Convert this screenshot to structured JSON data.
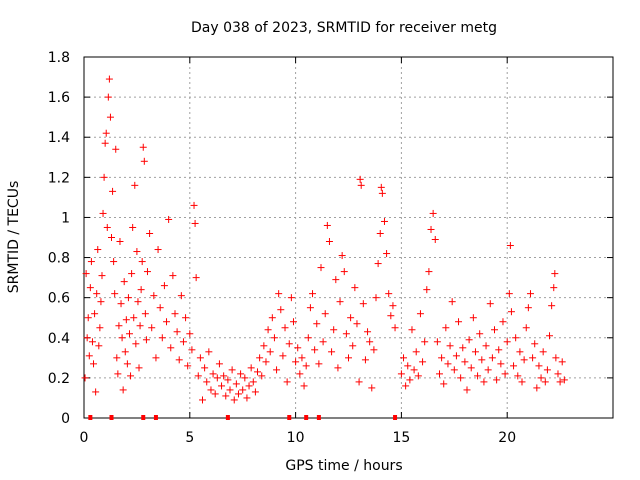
{
  "chart_data": {
    "type": "scatter",
    "title": "Day 038 of 2023, SRMTID for receiver metg",
    "xlabel": "GPS time / hours",
    "ylabel": "SRMTID / TECUs",
    "xlim": [
      0,
      25
    ],
    "ylim": [
      0,
      1.8
    ],
    "xticks": [
      "0",
      "5",
      "10",
      "15",
      "20"
    ],
    "xtick_values": [
      0,
      5,
      10,
      15,
      20
    ],
    "yticks": [
      "0",
      "0.2",
      "0.4",
      "0.6",
      "0.8",
      "1",
      "1.2",
      "1.4",
      "1.6",
      "1.8"
    ],
    "ytick_values": [
      0,
      0.2,
      0.4,
      0.6,
      0.8,
      1.0,
      1.2,
      1.4,
      1.6,
      1.8
    ],
    "grid": true,
    "marker": "+",
    "color": "#ff0000",
    "series": [
      {
        "name": "SRMTID",
        "points": [
          [
            0.05,
            0.2
          ],
          [
            0.1,
            0.72
          ],
          [
            0.15,
            0.4
          ],
          [
            0.2,
            0.5
          ],
          [
            0.25,
            0.31
          ],
          [
            0.3,
            0.65
          ],
          [
            0.35,
            0.78
          ],
          [
            0.4,
            0.38
          ],
          [
            0.45,
            0.27
          ],
          [
            0.5,
            0.52
          ],
          [
            0.55,
            0.13
          ],
          [
            0.6,
            0.62
          ],
          [
            0.65,
            0.84
          ],
          [
            0.7,
            0.36
          ],
          [
            0.75,
            0.45
          ],
          [
            0.8,
            0.58
          ],
          [
            0.85,
            0.71
          ],
          [
            0.9,
            1.02
          ],
          [
            0.95,
            1.2
          ],
          [
            1.0,
            1.37
          ],
          [
            1.05,
            1.42
          ],
          [
            1.1,
            0.95
          ],
          [
            1.15,
            1.6
          ],
          [
            1.2,
            1.69
          ],
          [
            1.25,
            1.5
          ],
          [
            1.3,
            0.9
          ],
          [
            1.35,
            1.13
          ],
          [
            1.4,
            0.78
          ],
          [
            1.45,
            0.62
          ],
          [
            1.5,
            1.34
          ],
          [
            1.55,
            0.3
          ],
          [
            1.6,
            0.22
          ],
          [
            1.65,
            0.46
          ],
          [
            1.7,
            0.88
          ],
          [
            1.75,
            0.57
          ],
          [
            1.8,
            0.4
          ],
          [
            1.85,
            0.14
          ],
          [
            1.9,
            0.68
          ],
          [
            1.95,
            0.33
          ],
          [
            2.0,
            0.49
          ],
          [
            2.05,
            0.27
          ],
          [
            2.1,
            0.6
          ],
          [
            2.15,
            0.42
          ],
          [
            2.2,
            0.21
          ],
          [
            2.25,
            0.72
          ],
          [
            2.3,
            0.95
          ],
          [
            2.35,
            0.5
          ],
          [
            2.4,
            1.16
          ],
          [
            2.45,
            0.37
          ],
          [
            2.5,
            0.83
          ],
          [
            2.55,
            0.58
          ],
          [
            2.6,
            0.25
          ],
          [
            2.65,
            0.46
          ],
          [
            2.7,
            0.64
          ],
          [
            2.75,
            0.78
          ],
          [
            2.8,
            1.35
          ],
          [
            2.85,
            1.28
          ],
          [
            2.9,
            0.52
          ],
          [
            2.95,
            0.39
          ],
          [
            3.0,
            0.73
          ],
          [
            3.1,
            0.92
          ],
          [
            3.2,
            0.45
          ],
          [
            3.3,
            0.61
          ],
          [
            3.4,
            0.3
          ],
          [
            3.5,
            0.84
          ],
          [
            3.6,
            0.55
          ],
          [
            3.7,
            0.4
          ],
          [
            3.8,
            0.66
          ],
          [
            3.9,
            0.48
          ],
          [
            4.0,
            0.99
          ],
          [
            4.1,
            0.35
          ],
          [
            4.2,
            0.71
          ],
          [
            4.3,
            0.52
          ],
          [
            4.4,
            0.43
          ],
          [
            4.5,
            0.29
          ],
          [
            4.6,
            0.61
          ],
          [
            4.7,
            0.38
          ],
          [
            4.8,
            0.5
          ],
          [
            4.9,
            0.26
          ],
          [
            5.0,
            0.42
          ],
          [
            5.1,
            0.34
          ],
          [
            5.2,
            1.06
          ],
          [
            5.25,
            0.97
          ],
          [
            5.3,
            0.7
          ],
          [
            5.4,
            0.21
          ],
          [
            5.5,
            0.3
          ],
          [
            5.6,
            0.09
          ],
          [
            5.7,
            0.25
          ],
          [
            5.8,
            0.18
          ],
          [
            5.9,
            0.33
          ],
          [
            6.0,
            0.14
          ],
          [
            6.1,
            0.22
          ],
          [
            6.2,
            0.12
          ],
          [
            6.3,
            0.2
          ],
          [
            6.4,
            0.27
          ],
          [
            6.5,
            0.16
          ],
          [
            6.6,
            0.21
          ],
          [
            6.7,
            0.11
          ],
          [
            6.8,
            0.19
          ],
          [
            6.9,
            0.14
          ],
          [
            7.0,
            0.24
          ],
          [
            7.1,
            0.09
          ],
          [
            7.2,
            0.17
          ],
          [
            7.3,
            0.12
          ],
          [
            7.4,
            0.22
          ],
          [
            7.5,
            0.14
          ],
          [
            7.6,
            0.2
          ],
          [
            7.7,
            0.1
          ],
          [
            7.8,
            0.16
          ],
          [
            7.9,
            0.25
          ],
          [
            8.0,
            0.18
          ],
          [
            8.1,
            0.13
          ],
          [
            8.2,
            0.23
          ],
          [
            8.3,
            0.3
          ],
          [
            8.4,
            0.21
          ],
          [
            8.5,
            0.36
          ],
          [
            8.6,
            0.28
          ],
          [
            8.7,
            0.44
          ],
          [
            8.8,
            0.33
          ],
          [
            8.9,
            0.5
          ],
          [
            9.0,
            0.4
          ],
          [
            9.1,
            0.24
          ],
          [
            9.2,
            0.62
          ],
          [
            9.3,
            0.54
          ],
          [
            9.4,
            0.31
          ],
          [
            9.5,
            0.45
          ],
          [
            9.6,
            0.18
          ],
          [
            9.7,
            0.37
          ],
          [
            9.8,
            0.6
          ],
          [
            9.9,
            0.48
          ],
          [
            10.0,
            0.28
          ],
          [
            10.1,
            0.35
          ],
          [
            10.2,
            0.22
          ],
          [
            10.3,
            0.3
          ],
          [
            10.4,
            0.16
          ],
          [
            10.5,
            0.26
          ],
          [
            10.6,
            0.4
          ],
          [
            10.7,
            0.55
          ],
          [
            10.8,
            0.62
          ],
          [
            10.9,
            0.34
          ],
          [
            11.0,
            0.47
          ],
          [
            11.1,
            0.27
          ],
          [
            11.2,
            0.75
          ],
          [
            11.3,
            0.38
          ],
          [
            11.4,
            0.52
          ],
          [
            11.5,
            0.96
          ],
          [
            11.6,
            0.88
          ],
          [
            11.7,
            0.33
          ],
          [
            11.8,
            0.44
          ],
          [
            11.9,
            0.69
          ],
          [
            12.0,
            0.25
          ],
          [
            12.1,
            0.58
          ],
          [
            12.2,
            0.81
          ],
          [
            12.3,
            0.73
          ],
          [
            12.4,
            0.42
          ],
          [
            12.5,
            0.3
          ],
          [
            12.6,
            0.5
          ],
          [
            12.7,
            0.36
          ],
          [
            12.8,
            0.65
          ],
          [
            12.9,
            0.47
          ],
          [
            13.0,
            0.18
          ],
          [
            13.05,
            1.19
          ],
          [
            13.1,
            1.16
          ],
          [
            13.2,
            0.57
          ],
          [
            13.3,
            0.29
          ],
          [
            13.4,
            0.43
          ],
          [
            13.5,
            0.38
          ],
          [
            13.6,
            0.15
          ],
          [
            13.7,
            0.34
          ],
          [
            13.8,
            0.6
          ],
          [
            13.9,
            0.77
          ],
          [
            14.0,
            0.92
          ],
          [
            14.05,
            1.15
          ],
          [
            14.1,
            1.12
          ],
          [
            14.2,
            0.98
          ],
          [
            14.3,
            0.82
          ],
          [
            14.4,
            0.62
          ],
          [
            14.5,
            0.51
          ],
          [
            14.6,
            0.56
          ],
          [
            14.7,
            0.45
          ],
          [
            15.0,
            0.22
          ],
          [
            15.1,
            0.3
          ],
          [
            15.2,
            0.16
          ],
          [
            15.3,
            0.26
          ],
          [
            15.4,
            0.19
          ],
          [
            15.5,
            0.44
          ],
          [
            15.6,
            0.24
          ],
          [
            15.7,
            0.33
          ],
          [
            15.8,
            0.21
          ],
          [
            15.9,
            0.52
          ],
          [
            16.0,
            0.28
          ],
          [
            16.1,
            0.38
          ],
          [
            16.2,
            0.64
          ],
          [
            16.3,
            0.73
          ],
          [
            16.4,
            0.94
          ],
          [
            16.5,
            1.02
          ],
          [
            16.6,
            0.89
          ],
          [
            16.7,
            0.38
          ],
          [
            16.8,
            0.22
          ],
          [
            16.9,
            0.3
          ],
          [
            17.0,
            0.17
          ],
          [
            17.1,
            0.45
          ],
          [
            17.2,
            0.27
          ],
          [
            17.3,
            0.36
          ],
          [
            17.4,
            0.58
          ],
          [
            17.5,
            0.24
          ],
          [
            17.6,
            0.31
          ],
          [
            17.7,
            0.48
          ],
          [
            17.8,
            0.2
          ],
          [
            17.9,
            0.35
          ],
          [
            18.0,
            0.28
          ],
          [
            18.1,
            0.14
          ],
          [
            18.2,
            0.39
          ],
          [
            18.3,
            0.25
          ],
          [
            18.4,
            0.5
          ],
          [
            18.5,
            0.33
          ],
          [
            18.6,
            0.21
          ],
          [
            18.7,
            0.42
          ],
          [
            18.8,
            0.29
          ],
          [
            18.9,
            0.18
          ],
          [
            19.0,
            0.36
          ],
          [
            19.1,
            0.24
          ],
          [
            19.2,
            0.57
          ],
          [
            19.3,
            0.3
          ],
          [
            19.4,
            0.44
          ],
          [
            19.5,
            0.19
          ],
          [
            19.6,
            0.34
          ],
          [
            19.7,
            0.27
          ],
          [
            19.8,
            0.48
          ],
          [
            19.9,
            0.22
          ],
          [
            20.0,
            0.38
          ],
          [
            20.1,
            0.62
          ],
          [
            20.15,
            0.86
          ],
          [
            20.2,
            0.53
          ],
          [
            20.3,
            0.26
          ],
          [
            20.4,
            0.4
          ],
          [
            20.5,
            0.21
          ],
          [
            20.6,
            0.33
          ],
          [
            20.7,
            0.18
          ],
          [
            20.8,
            0.29
          ],
          [
            20.9,
            0.45
          ],
          [
            21.0,
            0.55
          ],
          [
            21.1,
            0.62
          ],
          [
            21.2,
            0.3
          ],
          [
            21.3,
            0.37
          ],
          [
            21.4,
            0.15
          ],
          [
            21.5,
            0.26
          ],
          [
            21.6,
            0.2
          ],
          [
            21.7,
            0.33
          ],
          [
            21.8,
            0.18
          ],
          [
            21.9,
            0.24
          ],
          [
            22.0,
            0.41
          ],
          [
            22.1,
            0.56
          ],
          [
            22.2,
            0.65
          ],
          [
            22.25,
            0.72
          ],
          [
            22.3,
            0.3
          ],
          [
            22.4,
            0.22
          ],
          [
            22.5,
            0.18
          ],
          [
            22.6,
            0.28
          ],
          [
            22.7,
            0.19
          ]
        ]
      }
    ],
    "axis_markers_x": [
      0.3,
      1.3,
      2.8,
      3.4,
      6.8,
      9.7,
      10.5,
      11.1,
      14.7
    ]
  }
}
